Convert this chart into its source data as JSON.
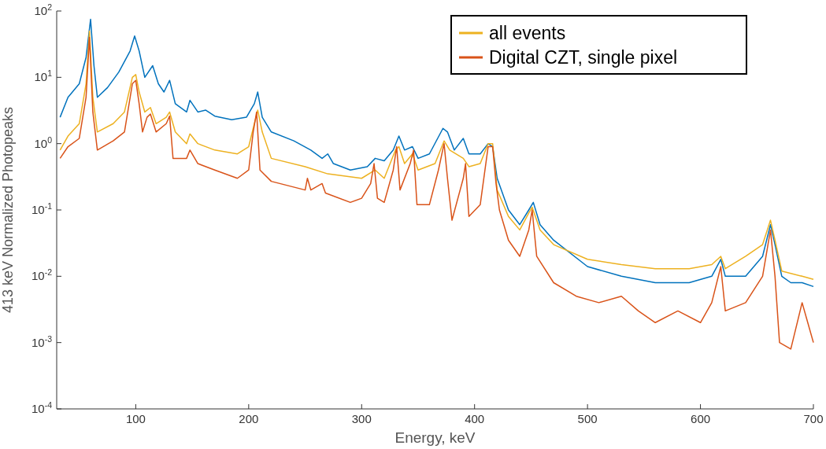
{
  "chart_data": {
    "type": "line",
    "xlabel": "Energy, keV",
    "ylabel": "413 keV Normalized Photopeaks",
    "log": "y",
    "xlim": [
      30,
      700
    ],
    "ylim": [
      0.0001,
      100
    ],
    "xticks": [
      100,
      200,
      300,
      400,
      500,
      600,
      700
    ],
    "yticks": [
      {
        "value": 0.0001,
        "label": "10$^{-4}$"
      },
      {
        "value": 0.001,
        "label": "10$^{-3}$"
      },
      {
        "value": 0.01,
        "label": "10$^{-2}$"
      },
      {
        "value": 0.1,
        "label": "10$^{-1}$"
      },
      {
        "value": 1,
        "label": "10$^{0}$"
      },
      {
        "value": 10,
        "label": "10$^{1}$"
      },
      {
        "value": 100,
        "label": "10$^{2}$"
      }
    ],
    "grid": false,
    "legend": "top right",
    "line_style": "solid",
    "series": [
      {
        "color": "#0072bd",
        "x": [
          33,
          40,
          50,
          56,
          60,
          63,
          66,
          75,
          85,
          95,
          99,
          103,
          108,
          115,
          120,
          125,
          130,
          135,
          145,
          148,
          155,
          162,
          170,
          185,
          198,
          205,
          208,
          212,
          220,
          240,
          255,
          265,
          270,
          275,
          290,
          305,
          312,
          320,
          328,
          333,
          338,
          345,
          350,
          360,
          372,
          376,
          382,
          390,
          395,
          405,
          412,
          416,
          420,
          430,
          440,
          448,
          452,
          458,
          470,
          500,
          530,
          560,
          590,
          610,
          618,
          622,
          640,
          655,
          662,
          666,
          672,
          680,
          690,
          700
        ],
        "values": [
          2.5,
          5,
          8,
          20,
          75,
          15,
          5,
          7,
          12,
          25,
          42,
          25,
          10,
          15,
          8,
          6,
          9,
          4,
          3,
          4.5,
          3,
          3.2,
          2.6,
          2.3,
          2.5,
          4,
          6,
          2.5,
          1.5,
          1.1,
          0.8,
          0.6,
          0.7,
          0.5,
          0.4,
          0.45,
          0.6,
          0.55,
          0.8,
          1.3,
          0.8,
          0.9,
          0.6,
          0.7,
          1.7,
          1.5,
          0.8,
          1.2,
          0.7,
          0.7,
          1,
          0.9,
          0.3,
          0.1,
          0.06,
          0.1,
          0.13,
          0.06,
          0.035,
          0.014,
          0.01,
          0.008,
          0.008,
          0.01,
          0.018,
          0.01,
          0.01,
          0.02,
          0.06,
          0.03,
          0.01,
          0.008,
          0.008,
          0.007
        ]
      },
      {
        "name": "all events",
        "color": "#edb120",
        "x": [
          33,
          40,
          50,
          56,
          59,
          62,
          66,
          80,
          90,
          97,
          100,
          103,
          108,
          113,
          118,
          127,
          130,
          135,
          145,
          148,
          155,
          170,
          190,
          200,
          205,
          208,
          212,
          220,
          250,
          270,
          300,
          312,
          320,
          330,
          333,
          338,
          345,
          350,
          365,
          373,
          378,
          390,
          395,
          405,
          412,
          416,
          420,
          430,
          440,
          448,
          451,
          458,
          470,
          500,
          530,
          560,
          590,
          610,
          618,
          622,
          640,
          655,
          662,
          666,
          672,
          690,
          700
        ],
        "values": [
          0.8,
          1.3,
          2,
          8,
          50,
          5,
          1.5,
          2,
          3,
          10,
          11,
          6,
          3,
          3.5,
          2,
          2.5,
          3,
          1.5,
          1,
          1.4,
          1,
          0.8,
          0.7,
          0.9,
          2,
          3.2,
          1.5,
          0.6,
          0.45,
          0.35,
          0.3,
          0.4,
          0.3,
          0.8,
          0.9,
          0.5,
          0.7,
          0.4,
          0.5,
          1.1,
          0.8,
          0.6,
          0.45,
          0.5,
          1,
          1,
          0.2,
          0.08,
          0.05,
          0.09,
          0.11,
          0.05,
          0.03,
          0.018,
          0.015,
          0.013,
          0.013,
          0.015,
          0.02,
          0.013,
          0.02,
          0.03,
          0.07,
          0.035,
          0.012,
          0.01,
          0.009
        ]
      },
      {
        "name": "Digital CZT, single pixel",
        "color": "#d95319",
        "x": [
          33,
          40,
          50,
          56,
          59,
          62,
          66,
          80,
          90,
          97,
          100,
          103,
          106,
          110,
          113,
          118,
          127,
          130,
          133,
          145,
          148,
          155,
          170,
          190,
          200,
          204,
          207,
          210,
          220,
          250,
          252,
          255,
          265,
          268,
          290,
          300,
          308,
          311,
          314,
          320,
          328,
          331,
          334,
          343,
          346,
          349,
          360,
          368,
          373,
          376,
          380,
          390,
          392,
          395,
          405,
          412,
          416,
          419,
          422,
          430,
          440,
          448,
          451,
          455,
          470,
          490,
          510,
          530,
          545,
          560,
          580,
          600,
          610,
          618,
          622,
          640,
          655,
          662,
          666,
          670,
          680,
          690,
          695,
          700
        ],
        "values": [
          0.6,
          0.9,
          1.2,
          5,
          40,
          3,
          0.8,
          1.1,
          1.5,
          8,
          9,
          4,
          1.5,
          2.5,
          2.8,
          1.5,
          2,
          2.6,
          0.6,
          0.6,
          0.8,
          0.5,
          0.4,
          0.3,
          0.4,
          1.5,
          3,
          0.4,
          0.27,
          0.2,
          0.3,
          0.2,
          0.25,
          0.18,
          0.13,
          0.15,
          0.25,
          0.5,
          0.15,
          0.13,
          0.4,
          0.9,
          0.2,
          0.5,
          0.8,
          0.12,
          0.12,
          0.4,
          1,
          0.3,
          0.07,
          0.3,
          0.5,
          0.08,
          0.12,
          0.9,
          0.9,
          0.25,
          0.1,
          0.035,
          0.02,
          0.05,
          0.1,
          0.02,
          0.008,
          0.005,
          0.004,
          0.005,
          0.003,
          0.002,
          0.003,
          0.002,
          0.004,
          0.014,
          0.003,
          0.004,
          0.01,
          0.05,
          0.01,
          0.001,
          0.0008,
          0.004,
          0.002,
          0.001
        ]
      }
    ]
  }
}
